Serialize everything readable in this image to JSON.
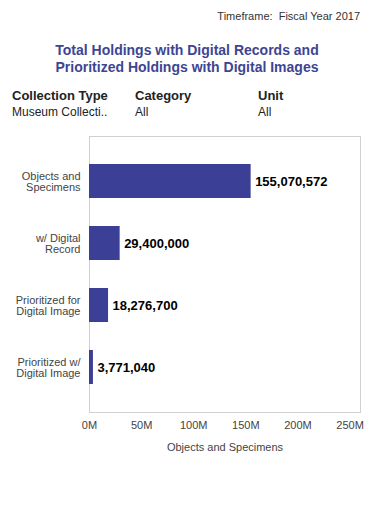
{
  "chart_data": {
    "type": "bar",
    "orientation": "horizontal",
    "timeframe_label": "Timeframe:",
    "timeframe": "Fiscal Year 2017",
    "title": "Total Holdings with Digital Records and Prioritized Holdings with Digital Images",
    "filters": [
      {
        "label": "Collection Type",
        "value": "Museum Collecti.."
      },
      {
        "label": "Category",
        "value": "All"
      },
      {
        "label": "Unit",
        "value": "All"
      }
    ],
    "categories": [
      "Objects and Specimens",
      "w/ Digital Record",
      "Prioritized for Digital Image",
      "Prioritized w/ Digital Image"
    ],
    "values": [
      155070572,
      29400000,
      18276700,
      3771040
    ],
    "value_labels": [
      "155,070,572",
      "29,400,000",
      "18,276,700",
      "3,771,040"
    ],
    "color": "#3b3f96",
    "xlabel": "Objects and Specimens",
    "xlim": [
      0,
      260000000
    ],
    "xticks": [
      {
        "value": 0,
        "label": "0M"
      },
      {
        "value": 50000000,
        "label": "50M"
      },
      {
        "value": 100000000,
        "label": "100M"
      },
      {
        "value": 150000000,
        "label": "150M"
      },
      {
        "value": 200000000,
        "label": "200M"
      },
      {
        "value": 250000000,
        "label": "250M"
      }
    ],
    "data_labels": true,
    "grid": false
  }
}
